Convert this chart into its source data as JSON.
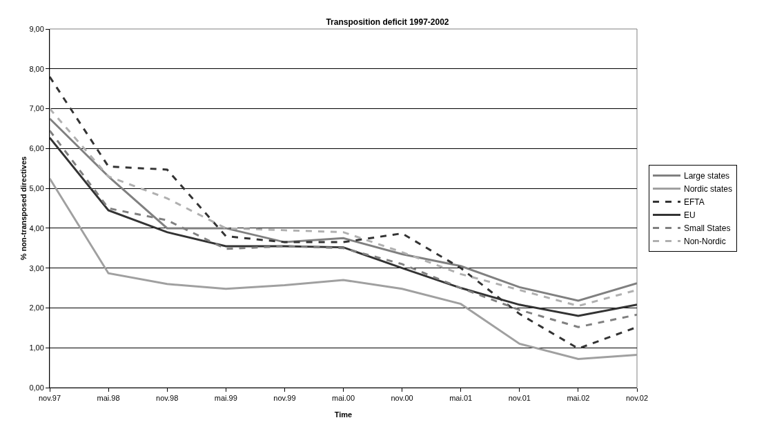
{
  "chart_data": {
    "type": "line",
    "title": "Transposition deficit 1997-2002",
    "xlabel": "Time",
    "ylabel": "% non-transposed directives",
    "categories": [
      "nov.97",
      "mai.98",
      "nov.98",
      "mai.99",
      "nov.99",
      "mai.00",
      "nov.00",
      "mai.01",
      "nov.01",
      "mai.02",
      "nov.02"
    ],
    "series": [
      {
        "name": "Large states",
        "color": "#808080",
        "line_style": "solid",
        "values": [
          6.75,
          5.3,
          4.0,
          4.0,
          3.65,
          3.75,
          3.35,
          3.05,
          2.52,
          2.18,
          2.62
        ]
      },
      {
        "name": "Nordic states",
        "color": "#a0a0a0",
        "line_style": "solid",
        "values": [
          5.25,
          2.87,
          2.6,
          2.48,
          2.57,
          2.7,
          2.48,
          2.1,
          1.1,
          0.72,
          0.82
        ]
      },
      {
        "name": "EFTA",
        "color": "#333333",
        "line_style": "dashed",
        "values": [
          7.8,
          5.55,
          5.47,
          3.8,
          3.65,
          3.65,
          3.87,
          3.0,
          1.85,
          0.98,
          1.52
        ]
      },
      {
        "name": "EU",
        "color": "#333333",
        "line_style": "solid",
        "values": [
          6.27,
          4.45,
          3.9,
          3.55,
          3.55,
          3.52,
          3.0,
          2.5,
          2.08,
          1.8,
          2.08
        ]
      },
      {
        "name": "Small States",
        "color": "#808080",
        "line_style": "dashed",
        "values": [
          6.45,
          4.5,
          4.2,
          3.48,
          3.55,
          3.5,
          3.1,
          2.5,
          1.95,
          1.52,
          1.83
        ]
      },
      {
        "name": "Non-Nordic",
        "color": "#b0b0b0",
        "line_style": "dashed",
        "values": [
          7.0,
          5.3,
          4.75,
          4.0,
          3.95,
          3.9,
          3.4,
          2.85,
          2.45,
          2.05,
          2.45
        ]
      }
    ],
    "ylim": [
      0,
      9
    ],
    "yticks": [
      {
        "value": 0,
        "label": "0,00"
      },
      {
        "value": 1,
        "label": "1,00"
      },
      {
        "value": 2,
        "label": "2,00"
      },
      {
        "value": 3,
        "label": "3,00"
      },
      {
        "value": 4,
        "label": "4,00"
      },
      {
        "value": 5,
        "label": "5,00"
      },
      {
        "value": 6,
        "label": "6,00"
      },
      {
        "value": 7,
        "label": "7,00"
      },
      {
        "value": 8,
        "label": "8,00"
      },
      {
        "value": 9,
        "label": "9,00"
      }
    ],
    "grid": "y",
    "legend": "right",
    "marker": "none"
  }
}
